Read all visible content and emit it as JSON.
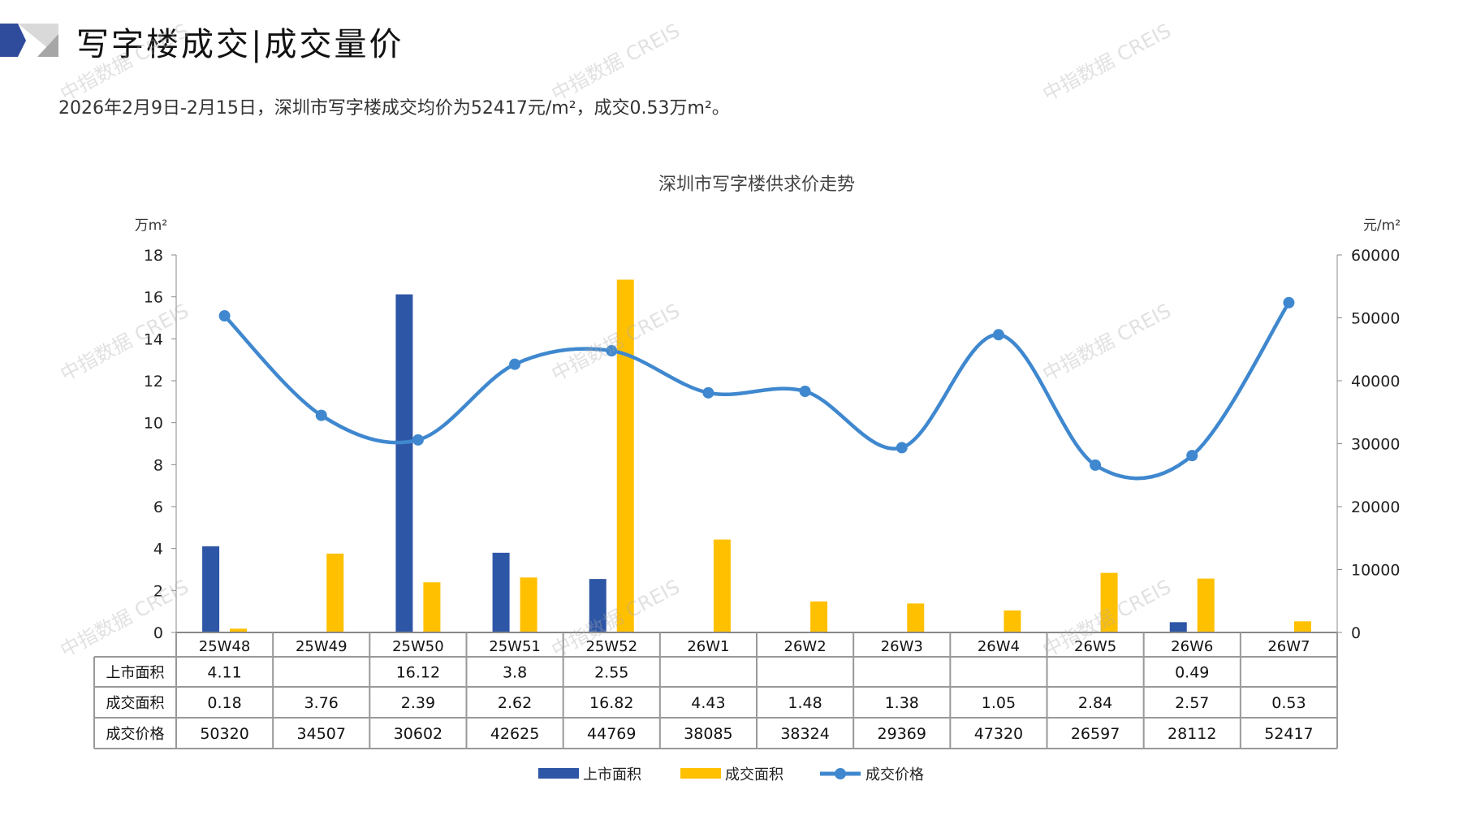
{
  "header": {
    "title": "写字楼成交|成交量价",
    "subtitle": "2026年2月9日-2月15日，深圳市写字楼成交均价为52417元/m²，成交0.53万m²。"
  },
  "watermark": "中指数据 CREIS",
  "colors": {
    "supply": "#2E56A6",
    "deal_area": "#FFC000",
    "price": "#3F88CF",
    "logo_blue": "#2F4B9C",
    "logo_grey": "#A6A6A6"
  },
  "chart_data": {
    "type": "bar",
    "title": "深圳市写字楼供求价走势",
    "y_left_unit": "万m²",
    "y_right_unit": "元/m²",
    "ylim_left": [
      0,
      18
    ],
    "ylim_right": [
      0,
      60000
    ],
    "y_left_ticks": [
      "0",
      "2",
      "4",
      "6",
      "8",
      "10",
      "12",
      "14",
      "16",
      "18"
    ],
    "y_right_ticks": [
      "0",
      "10000",
      "20000",
      "30000",
      "40000",
      "50000",
      "60000"
    ],
    "categories": [
      "25W48",
      "25W49",
      "25W50",
      "25W51",
      "25W52",
      "26W1",
      "26W2",
      "26W3",
      "26W4",
      "26W5",
      "26W6",
      "26W7"
    ],
    "series": [
      {
        "name": "上市面积",
        "type": "bar",
        "axis": "left",
        "values": [
          4.11,
          null,
          16.12,
          3.8,
          2.55,
          null,
          null,
          null,
          null,
          null,
          0.49,
          null
        ],
        "display": [
          "4.11",
          "",
          "16.12",
          "3.8",
          "2.55",
          "",
          "",
          "",
          "",
          "",
          "0.49",
          ""
        ]
      },
      {
        "name": "成交面积",
        "type": "bar",
        "axis": "left",
        "values": [
          0.18,
          3.76,
          2.39,
          2.62,
          16.82,
          4.43,
          1.48,
          1.38,
          1.05,
          2.84,
          2.57,
          0.53
        ],
        "display": [
          "0.18",
          "3.76",
          "2.39",
          "2.62",
          "16.82",
          "4.43",
          "1.48",
          "1.38",
          "1.05",
          "2.84",
          "2.57",
          "0.53"
        ]
      },
      {
        "name": "成交价格",
        "type": "line",
        "axis": "right",
        "values": [
          50320,
          34507,
          30602,
          42625,
          44769,
          38085,
          38324,
          29369,
          47320,
          26597,
          28112,
          52417
        ],
        "display": [
          "50320",
          "34507",
          "30602",
          "42625",
          "44769",
          "38085",
          "38324",
          "29369",
          "47320",
          "26597",
          "28112",
          "52417"
        ]
      }
    ],
    "legend": "bottom"
  }
}
